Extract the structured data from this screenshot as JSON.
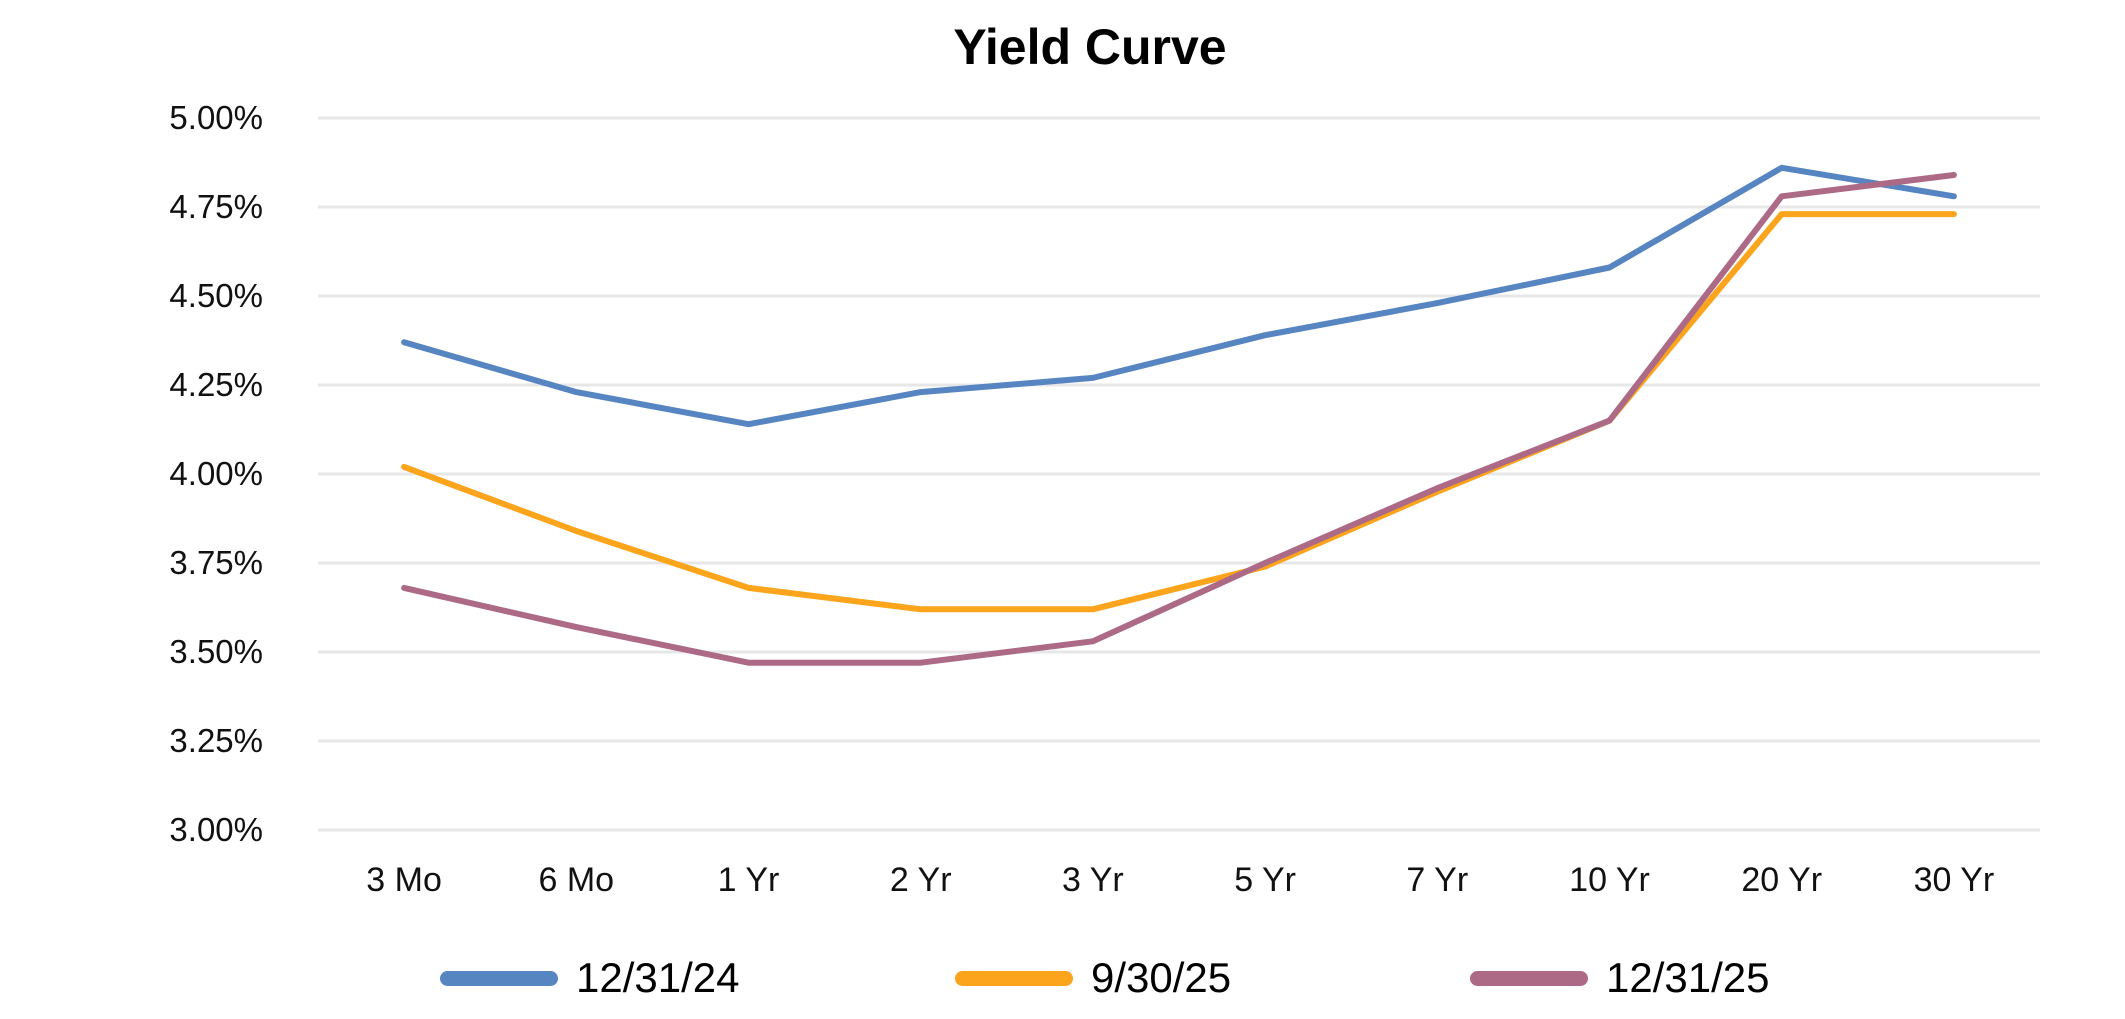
{
  "chart_data": {
    "type": "line",
    "title": "Yield Curve",
    "categories": [
      "3 Mo",
      "6 Mo",
      "1 Yr",
      "2 Yr",
      "3 Yr",
      "5 Yr",
      "7 Yr",
      "10 Yr",
      "20 Yr",
      "30 Yr"
    ],
    "y_axis": {
      "min": 3.0,
      "max": 5.0,
      "step": 0.25,
      "tick_labels": [
        "5.00%",
        "4.75%",
        "4.50%",
        "4.25%",
        "4.00%",
        "3.75%",
        "3.50%",
        "3.25%",
        "3.00%"
      ]
    },
    "grid": "horizontal-only",
    "gridline_color": "#E7E7E7",
    "background_color": "#FFFFFF",
    "legend_position": "bottom",
    "series": [
      {
        "name": "12/31/24",
        "color": "#5785C1",
        "values": [
          4.37,
          4.23,
          4.14,
          4.23,
          4.27,
          4.39,
          4.48,
          4.58,
          4.86,
          4.78
        ]
      },
      {
        "name": "9/30/25",
        "color": "#FBA41C",
        "values": [
          4.02,
          3.84,
          3.68,
          3.62,
          3.62,
          3.74,
          3.95,
          4.15,
          4.73,
          4.73
        ]
      },
      {
        "name": "12/31/25",
        "color": "#AD6A87",
        "values": [
          3.68,
          3.57,
          3.47,
          3.47,
          3.53,
          3.75,
          3.96,
          4.15,
          4.78,
          4.84
        ]
      }
    ]
  }
}
